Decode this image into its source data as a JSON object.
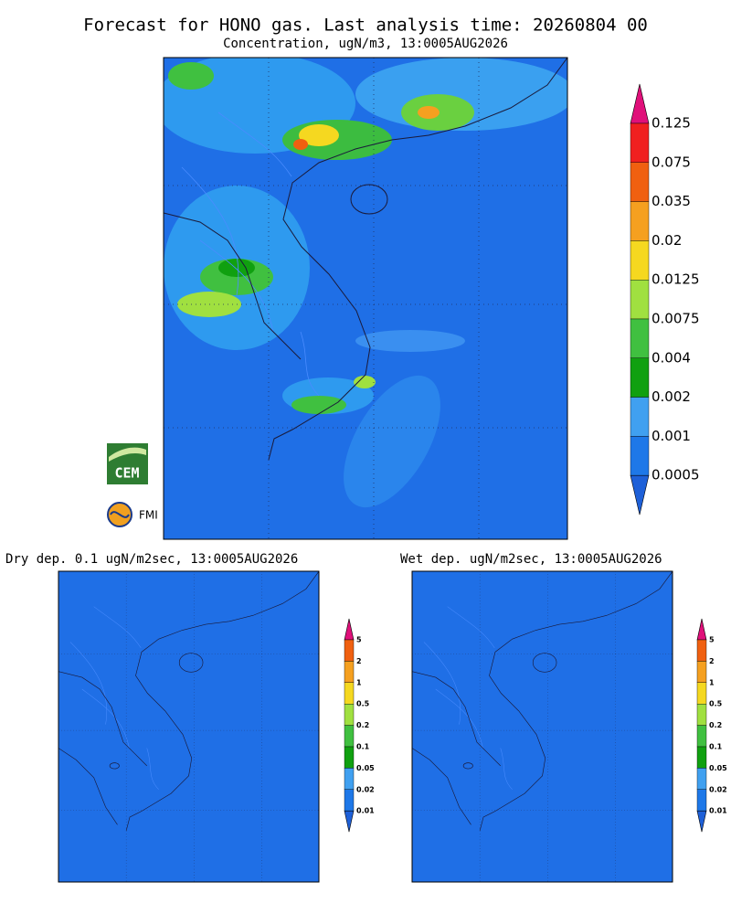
{
  "header": {
    "title": "Forecast for HONO gas. Last analysis time: 20260804 00",
    "subtitle": "Concentration, ugN/m3, 13:0005AUG2026"
  },
  "main_colorbar": {
    "labels": [
      "0.125",
      "0.075",
      "0.035",
      "0.02",
      "0.0125",
      "0.0075",
      "0.004",
      "0.002",
      "0.001",
      "0.0005"
    ]
  },
  "panels": [
    {
      "title": "Dry dep. 0.1 ugN/m2sec, 13:0005AUG2026",
      "colorbar_labels": [
        "5",
        "2",
        "1",
        "0.5",
        "0.2",
        "0.1",
        "0.05",
        "0.02",
        "0.01"
      ]
    },
    {
      "title": "Wet dep. ugN/m2sec, 13:0005AUG2026",
      "colorbar_labels": [
        "5",
        "2",
        "1",
        "0.5",
        "0.2",
        "0.1",
        "0.05",
        "0.02",
        "0.01"
      ]
    }
  ],
  "logos": [
    "CEM",
    "FMI"
  ]
}
